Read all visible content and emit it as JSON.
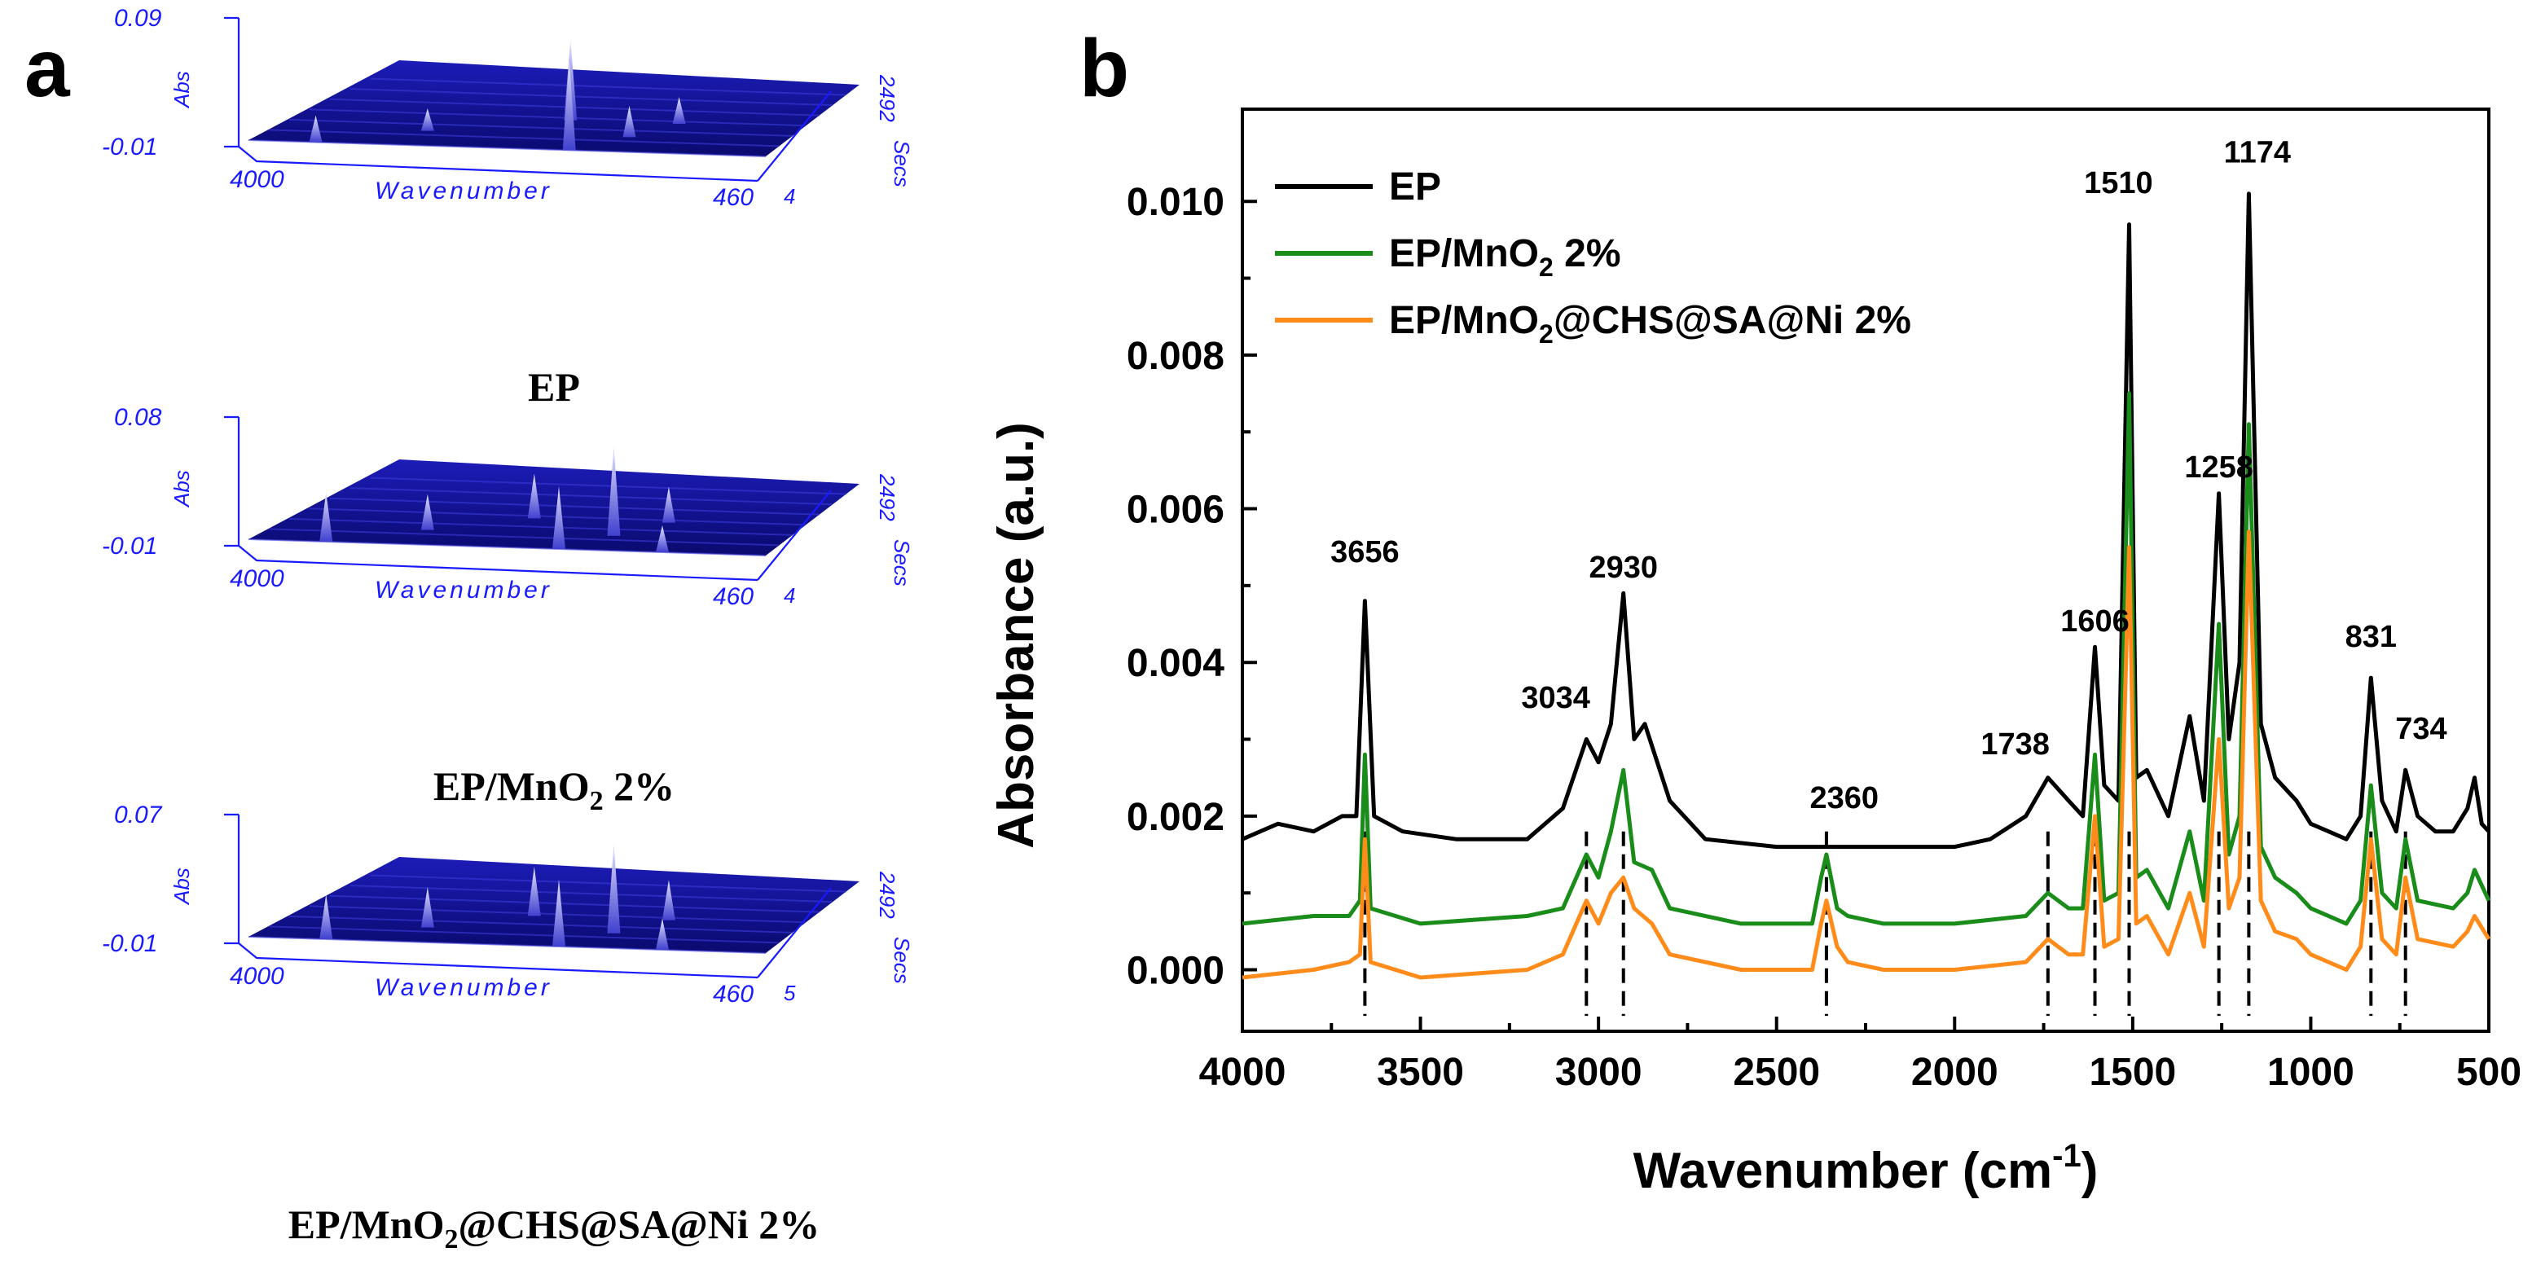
{
  "panel_a": {
    "letter": "a",
    "common": {
      "xlabel": "Wavenumber",
      "ylabel": "Abs",
      "zlabel": "Secs",
      "x_start": "4000",
      "x_end": "460",
      "y_min": "-0.01",
      "z_end": "2492"
    },
    "plots": [
      {
        "y_max": "0.09",
        "z_start": "4",
        "caption": "EP"
      },
      {
        "y_max": "0.08",
        "z_start": "4",
        "caption_main": "EP/MnO",
        "caption_sub": "2",
        "caption_rest": " 2%"
      },
      {
        "y_max": "0.07",
        "z_start": "5",
        "caption_main": "EP/MnO",
        "caption_sub": "2",
        "caption_rest": "@CHS@SA@Ni 2%"
      }
    ],
    "colors": {
      "surface_dark": "#0a0a6e",
      "surface_mid": "#1c1cb8",
      "highlight": "#c9c9ff",
      "axis": "#1a1aff"
    }
  },
  "panel_b": {
    "letter": "b",
    "xlabel_main": "Wavenumber (cm",
    "xlabel_sup": "-1",
    "xlabel_end": ")",
    "ylabel": "Absorbance (a.u.)",
    "legend": [
      {
        "main": "EP",
        "sub": "",
        "rest": "",
        "color": "#000000"
      },
      {
        "main": "EP/MnO",
        "sub": "2",
        "rest": " 2%",
        "color": "#1a8c1a"
      },
      {
        "main": "EP/MnO",
        "sub": "2",
        "rest": "@CHS@SA@Ni 2%",
        "color": "#ff8c1a"
      }
    ],
    "xticks": [
      "4000",
      "3500",
      "3000",
      "2500",
      "2000",
      "1500",
      "1000",
      "500"
    ],
    "yticks": [
      "0.000",
      "0.002",
      "0.004",
      "0.006",
      "0.008",
      "0.010"
    ],
    "peak_labels": [
      "3656",
      "3034",
      "2930",
      "2360",
      "1738",
      "1606",
      "1510",
      "1258",
      "1174",
      "831",
      "734"
    ]
  },
  "chart_data": [
    {
      "type": "line",
      "xlabel": "Wavenumber (cm-1)",
      "ylabel": "Absorbance (a.u.)",
      "xlim": [
        4000,
        500
      ],
      "ylim": [
        -0.0008,
        0.0112
      ],
      "grid": false,
      "legend_position": "top-left",
      "series": [
        {
          "name": "EP",
          "color": "#000000",
          "points": [
            [
              4000,
              0.0017
            ],
            [
              3900,
              0.0019
            ],
            [
              3800,
              0.0018
            ],
            [
              3720,
              0.002
            ],
            [
              3680,
              0.002
            ],
            [
              3656,
              0.0048
            ],
            [
              3630,
              0.002
            ],
            [
              3550,
              0.0018
            ],
            [
              3400,
              0.0017
            ],
            [
              3200,
              0.0017
            ],
            [
              3100,
              0.0021
            ],
            [
              3034,
              0.003
            ],
            [
              3000,
              0.0027
            ],
            [
              2965,
              0.0032
            ],
            [
              2930,
              0.0049
            ],
            [
              2900,
              0.003
            ],
            [
              2870,
              0.0032
            ],
            [
              2800,
              0.0022
            ],
            [
              2700,
              0.0017
            ],
            [
              2500,
              0.0016
            ],
            [
              2400,
              0.0016
            ],
            [
              2360,
              0.0016
            ],
            [
              2300,
              0.0016
            ],
            [
              2200,
              0.0016
            ],
            [
              2000,
              0.0016
            ],
            [
              1900,
              0.0017
            ],
            [
              1800,
              0.002
            ],
            [
              1738,
              0.0025
            ],
            [
              1680,
              0.0022
            ],
            [
              1640,
              0.002
            ],
            [
              1606,
              0.0042
            ],
            [
              1580,
              0.0024
            ],
            [
              1540,
              0.0022
            ],
            [
              1510,
              0.0097
            ],
            [
              1490,
              0.0025
            ],
            [
              1460,
              0.0026
            ],
            [
              1400,
              0.002
            ],
            [
              1340,
              0.0033
            ],
            [
              1300,
              0.0022
            ],
            [
              1258,
              0.0062
            ],
            [
              1230,
              0.003
            ],
            [
              1200,
              0.004
            ],
            [
              1174,
              0.0101
            ],
            [
              1140,
              0.0032
            ],
            [
              1100,
              0.0025
            ],
            [
              1040,
              0.0022
            ],
            [
              1000,
              0.0019
            ],
            [
              950,
              0.0018
            ],
            [
              900,
              0.0017
            ],
            [
              860,
              0.002
            ],
            [
              831,
              0.0038
            ],
            [
              800,
              0.0022
            ],
            [
              760,
              0.0018
            ],
            [
              734,
              0.0026
            ],
            [
              700,
              0.002
            ],
            [
              650,
              0.0018
            ],
            [
              600,
              0.0018
            ],
            [
              560,
              0.0021
            ],
            [
              540,
              0.0025
            ],
            [
              520,
              0.0019
            ],
            [
              500,
              0.0018
            ]
          ]
        },
        {
          "name": "EP/MnO2 2%",
          "color": "#1a8c1a",
          "points": [
            [
              4000,
              0.0006
            ],
            [
              3800,
              0.0007
            ],
            [
              3700,
              0.0007
            ],
            [
              3670,
              0.0009
            ],
            [
              3656,
              0.0028
            ],
            [
              3640,
              0.0008
            ],
            [
              3500,
              0.0006
            ],
            [
              3200,
              0.0007
            ],
            [
              3100,
              0.0008
            ],
            [
              3034,
              0.0015
            ],
            [
              3000,
              0.0012
            ],
            [
              2965,
              0.0018
            ],
            [
              2930,
              0.0026
            ],
            [
              2900,
              0.0014
            ],
            [
              2850,
              0.0013
            ],
            [
              2800,
              0.0008
            ],
            [
              2600,
              0.0006
            ],
            [
              2400,
              0.0006
            ],
            [
              2375,
              0.0012
            ],
            [
              2360,
              0.0015
            ],
            [
              2330,
              0.0008
            ],
            [
              2300,
              0.0007
            ],
            [
              2200,
              0.0006
            ],
            [
              2000,
              0.0006
            ],
            [
              1800,
              0.0007
            ],
            [
              1738,
              0.001
            ],
            [
              1680,
              0.0008
            ],
            [
              1640,
              0.0008
            ],
            [
              1606,
              0.0028
            ],
            [
              1580,
              0.0009
            ],
            [
              1540,
              0.001
            ],
            [
              1510,
              0.0075
            ],
            [
              1490,
              0.0012
            ],
            [
              1460,
              0.0013
            ],
            [
              1400,
              0.0008
            ],
            [
              1340,
              0.0018
            ],
            [
              1300,
              0.0009
            ],
            [
              1258,
              0.0045
            ],
            [
              1230,
              0.0015
            ],
            [
              1200,
              0.002
            ],
            [
              1174,
              0.0071
            ],
            [
              1140,
              0.0016
            ],
            [
              1100,
              0.0012
            ],
            [
              1040,
              0.001
            ],
            [
              1000,
              0.0008
            ],
            [
              900,
              0.0006
            ],
            [
              860,
              0.0009
            ],
            [
              831,
              0.0024
            ],
            [
              800,
              0.001
            ],
            [
              760,
              0.0008
            ],
            [
              734,
              0.0017
            ],
            [
              700,
              0.0009
            ],
            [
              600,
              0.0008
            ],
            [
              560,
              0.001
            ],
            [
              540,
              0.0013
            ],
            [
              500,
              0.0009
            ]
          ]
        },
        {
          "name": "EP/MnO2@CHS@SA@Ni 2%",
          "color": "#ff8c1a",
          "points": [
            [
              4000,
              -0.0001
            ],
            [
              3800,
              0.0
            ],
            [
              3700,
              0.0001
            ],
            [
              3670,
              0.0002
            ],
            [
              3656,
              0.0017
            ],
            [
              3640,
              0.0001
            ],
            [
              3500,
              -0.0001
            ],
            [
              3200,
              0.0
            ],
            [
              3100,
              0.0002
            ],
            [
              3034,
              0.0009
            ],
            [
              3000,
              0.0006
            ],
            [
              2965,
              0.001
            ],
            [
              2930,
              0.0012
            ],
            [
              2900,
              0.0008
            ],
            [
              2850,
              0.0006
            ],
            [
              2800,
              0.0002
            ],
            [
              2600,
              0.0
            ],
            [
              2400,
              0.0
            ],
            [
              2375,
              0.0006
            ],
            [
              2360,
              0.0009
            ],
            [
              2330,
              0.0003
            ],
            [
              2300,
              0.0001
            ],
            [
              2200,
              0.0
            ],
            [
              2000,
              0.0
            ],
            [
              1800,
              0.0001
            ],
            [
              1738,
              0.0004
            ],
            [
              1680,
              0.0002
            ],
            [
              1640,
              0.0002
            ],
            [
              1606,
              0.002
            ],
            [
              1580,
              0.0003
            ],
            [
              1540,
              0.0004
            ],
            [
              1510,
              0.0055
            ],
            [
              1490,
              0.0006
            ],
            [
              1460,
              0.0007
            ],
            [
              1400,
              0.0002
            ],
            [
              1340,
              0.001
            ],
            [
              1300,
              0.0003
            ],
            [
              1258,
              0.003
            ],
            [
              1230,
              0.0008
            ],
            [
              1200,
              0.0012
            ],
            [
              1174,
              0.0057
            ],
            [
              1140,
              0.0009
            ],
            [
              1100,
              0.0005
            ],
            [
              1040,
              0.0004
            ],
            [
              1000,
              0.0002
            ],
            [
              900,
              0.0
            ],
            [
              860,
              0.0003
            ],
            [
              831,
              0.0017
            ],
            [
              800,
              0.0004
            ],
            [
              760,
              0.0002
            ],
            [
              734,
              0.0012
            ],
            [
              700,
              0.0004
            ],
            [
              600,
              0.0003
            ],
            [
              560,
              0.0005
            ],
            [
              540,
              0.0007
            ],
            [
              500,
              0.0004
            ]
          ]
        }
      ],
      "annotations": [
        "3656",
        "3034",
        "2930",
        "2360",
        "1738",
        "1606",
        "1510",
        "1258",
        "1174",
        "831",
        "734"
      ]
    }
  ]
}
